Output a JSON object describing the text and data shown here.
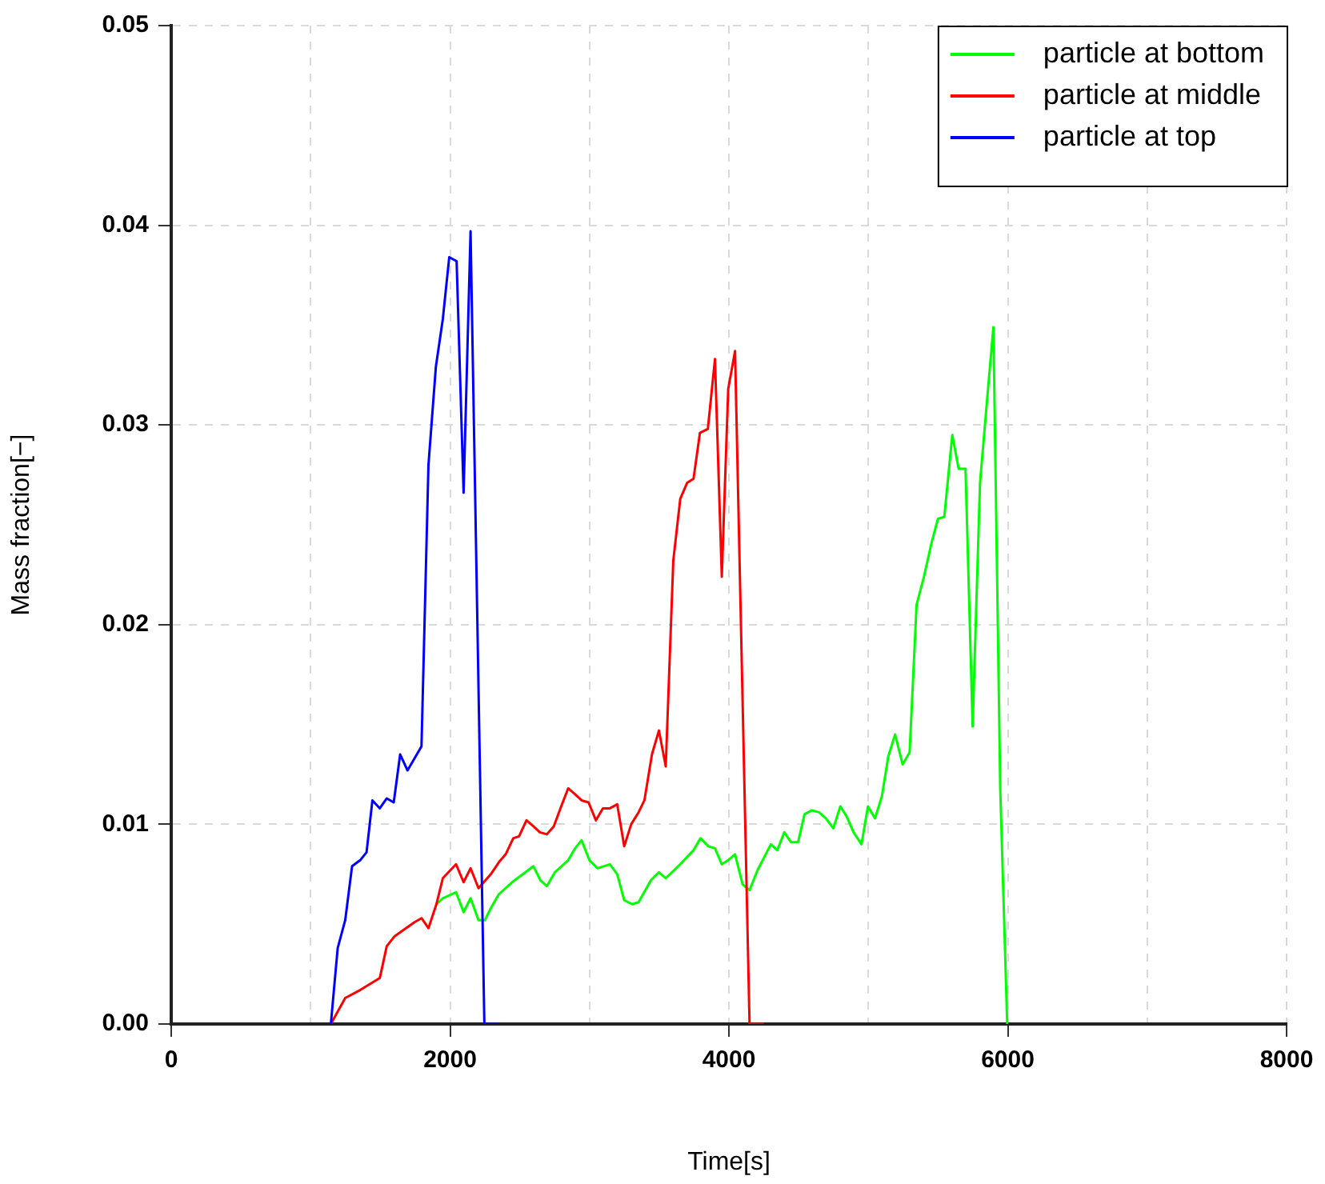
{
  "chart_data": {
    "type": "line",
    "xlabel": "Time[s]",
    "ylabel": "Mass fraction[−]",
    "xlim": [
      0,
      8000
    ],
    "ylim": [
      0,
      0.05
    ],
    "xticks": [
      0,
      {
        "value": 1000,
        "label": null
      },
      2000,
      {
        "value": 3000,
        "label": null
      },
      4000,
      {
        "value": 5000,
        "label": null
      },
      6000,
      {
        "value": 7000,
        "label": null
      },
      8000
    ],
    "yticks": [
      {
        "value": 0,
        "label": "0.00"
      },
      {
        "value": 0.01,
        "label": "0.01"
      },
      {
        "value": 0.02,
        "label": "0.02"
      },
      {
        "value": 0.03,
        "label": "0.03"
      },
      {
        "value": 0.04,
        "label": "0.04"
      },
      {
        "value": 0.05,
        "label": "0.05"
      }
    ],
    "grid": true,
    "legend": "top right",
    "marker": "none",
    "line_style": "solid",
    "series": [
      {
        "name": "particle at bottom",
        "color": "#00ff00",
        "x": [
          1902,
          1948,
          2043,
          2097,
          2147,
          2204,
          2250,
          2292,
          2350,
          2445,
          2541,
          2598,
          2648,
          2694,
          2752,
          2847,
          2897,
          2943,
          3000,
          3057,
          3146,
          3199,
          3249,
          3306,
          3352,
          3441,
          3498,
          3547,
          3651,
          3746,
          3796,
          3853,
          3900,
          3949,
          3995,
          4044,
          4098,
          4148,
          4205,
          4301,
          4347,
          4397,
          4446,
          4496,
          4542,
          4595,
          4646,
          4695,
          4749,
          4799,
          4844,
          4894,
          4951,
          4997,
          5048,
          5097,
          5143,
          5192,
          5246,
          5296,
          5346,
          5399,
          5450,
          5499,
          5545,
          5602,
          5648,
          5697,
          5748,
          5801,
          5851,
          5897,
          5946,
          5996
        ],
        "values": [
          0.006,
          0.0063,
          0.0066,
          0.0056,
          0.0063,
          0.0052,
          0.0052,
          0.0058,
          0.0065,
          0.0071,
          0.0076,
          0.0079,
          0.0072,
          0.0069,
          0.0076,
          0.0082,
          0.0088,
          0.0092,
          0.0082,
          0.0078,
          0.008,
          0.0075,
          0.0062,
          0.006,
          0.0061,
          0.0072,
          0.0076,
          0.0073,
          0.008,
          0.0087,
          0.0093,
          0.0089,
          0.0088,
          0.008,
          0.0082,
          0.0085,
          0.007,
          0.0067,
          0.0077,
          0.009,
          0.0087,
          0.0096,
          0.0091,
          0.0091,
          0.0105,
          0.0107,
          0.0106,
          0.0103,
          0.0098,
          0.0109,
          0.0104,
          0.0096,
          0.009,
          0.0109,
          0.0103,
          0.0114,
          0.0134,
          0.0145,
          0.013,
          0.0136,
          0.021,
          0.0224,
          0.024,
          0.0253,
          0.0254,
          0.0295,
          0.0278,
          0.0278,
          0.0149,
          0.0271,
          0.0312,
          0.0349,
          0.0118,
          0
        ]
      },
      {
        "name": "particle at middle",
        "color": "#ff0000",
        "x": [
          1145,
          1248,
          1355,
          1496,
          1546,
          1603,
          1745,
          1795,
          1845,
          1902,
          1948,
          2043,
          2097,
          2147,
          2204,
          2292,
          2350,
          2399,
          2453,
          2495,
          2548,
          2598,
          2644,
          2694,
          2744,
          2797,
          2847,
          2897,
          2943,
          2993,
          3046,
          3096,
          3146,
          3199,
          3249,
          3299,
          3352,
          3394,
          3448,
          3498,
          3547,
          3601,
          3651,
          3700,
          3746,
          3792,
          3849,
          3900,
          3949,
          3995,
          4044,
          4148,
          4250
        ],
        "values": [
          0,
          0.0013,
          0.0017,
          0.0023,
          0.0039,
          0.0044,
          0.0051,
          0.0053,
          0.0048,
          0.006,
          0.0073,
          0.008,
          0.0071,
          0.0078,
          0.0068,
          0.0075,
          0.0081,
          0.0085,
          0.0093,
          0.0094,
          0.0102,
          0.0099,
          0.0096,
          0.0095,
          0.0099,
          0.0109,
          0.0118,
          0.0115,
          0.0112,
          0.0111,
          0.0102,
          0.0108,
          0.0108,
          0.011,
          0.0089,
          0.01,
          0.0106,
          0.0112,
          0.0135,
          0.0147,
          0.0129,
          0.0232,
          0.0263,
          0.0271,
          0.0273,
          0.0296,
          0.0298,
          0.0333,
          0.0224,
          0.0318,
          0.0337,
          0,
          0
        ]
      },
      {
        "name": "particle at top",
        "color": "#0000ff",
        "x": [
          1145,
          1194,
          1248,
          1297,
          1355,
          1401,
          1443,
          1496,
          1546,
          1596,
          1642,
          1695,
          1795,
          1845,
          1898,
          1948,
          1994,
          2047,
          2097,
          2147,
          2246,
          2350
        ],
        "values": [
          0,
          0.0038,
          0.0052,
          0.0079,
          0.0082,
          0.0086,
          0.0112,
          0.0108,
          0.0113,
          0.0111,
          0.0135,
          0.0127,
          0.0139,
          0.028,
          0.0329,
          0.0353,
          0.0384,
          0.0382,
          0.0266,
          0.0397,
          0,
          0
        ]
      }
    ]
  }
}
